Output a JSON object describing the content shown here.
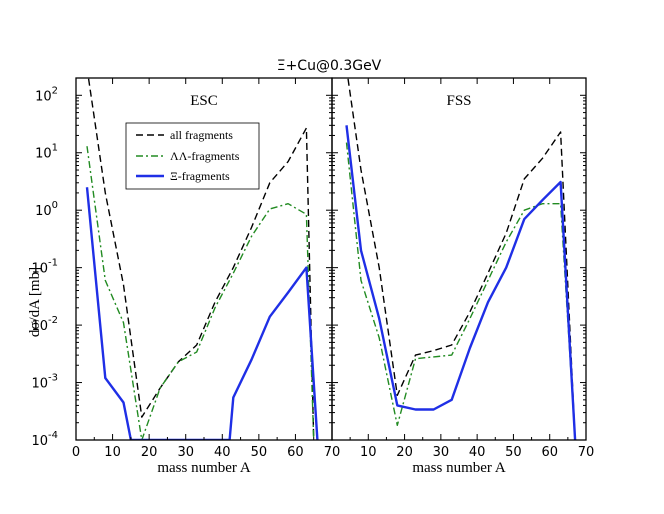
{
  "chart_data": {
    "type": "line",
    "title": "Ξ+Cu@0.3GeV",
    "ylabel": "dσ/dA [mb]",
    "yscale": "log",
    "ylim": [
      0.0001,
      200
    ],
    "y_ticks": [
      {
        "value": 0.0001,
        "base": "10",
        "exp": "-4"
      },
      {
        "value": 0.001,
        "base": "10",
        "exp": "-3"
      },
      {
        "value": 0.01,
        "base": "10",
        "exp": "-2"
      },
      {
        "value": 0.1,
        "base": "10",
        "exp": "-1"
      },
      {
        "value": 1,
        "base": "10",
        "exp": "0"
      },
      {
        "value": 10,
        "base": "10",
        "exp": "1"
      },
      {
        "value": 100,
        "base": "10",
        "exp": "2"
      }
    ],
    "legend": {
      "placement": "upper-left of left panel",
      "entries": [
        {
          "label": "all fragments",
          "color": "#000000",
          "dash": "dashed"
        },
        {
          "label": "ΛΛ-fragments",
          "color": "#228B22",
          "dash": "dash-dot"
        },
        {
          "label": "Ξ-fragments",
          "color": "#1f2fe6",
          "dash": "solid"
        }
      ]
    },
    "panels": [
      {
        "label": "ESC",
        "xlabel": "mass number A",
        "xlim": [
          0,
          70
        ],
        "x_ticks": [
          0,
          10,
          20,
          30,
          40,
          50,
          60,
          70
        ],
        "x_tick_labels": [
          "0",
          "10",
          "20",
          "30",
          "40",
          "50",
          "60",
          "70"
        ],
        "series": [
          {
            "name": "all fragments",
            "color": "#000000",
            "dash": "dashed",
            "x": [
              3,
              8,
              13,
              18,
              23,
              28,
              33,
              38,
              43,
              48,
              53,
              58,
              63,
              65
            ],
            "y": [
              300,
              2,
              0.05,
              0.00025,
              0.0008,
              0.0023,
              0.0045,
              0.025,
              0.1,
              0.5,
              3,
              7,
              27,
              0.0001
            ]
          },
          {
            "name": "ΛΛ-fragments",
            "color": "#228B22",
            "dash": "dash-dot",
            "x": [
              3,
              8,
              13,
              18,
              23,
              28,
              33,
              38,
              43,
              48,
              53,
              58,
              63,
              65
            ],
            "y": [
              13,
              0.06,
              0.011,
              0.0001,
              0.0008,
              0.0023,
              0.0034,
              0.02,
              0.08,
              0.35,
              1.05,
              1.3,
              0.85,
              0.0001
            ]
          },
          {
            "name": "Ξ-fragments",
            "color": "#1f2fe6",
            "dash": "solid",
            "x": [
              3,
              8,
              13,
              15,
              42,
              43,
              48,
              53,
              58,
              63,
              66
            ],
            "y": [
              2.5,
              0.0012,
              0.00045,
              0.0001,
              0.0001,
              0.00055,
              0.0025,
              0.014,
              0.037,
              0.1,
              0.0001
            ]
          }
        ]
      },
      {
        "label": "FSS",
        "xlabel": "mass number A",
        "xlim": [
          0,
          70
        ],
        "x_ticks": [
          0,
          10,
          20,
          30,
          40,
          50,
          60,
          70
        ],
        "x_tick_labels": [
          "",
          "10",
          "20",
          "30",
          "40",
          "50",
          "60",
          "70"
        ],
        "series": [
          {
            "name": "all fragments",
            "color": "#000000",
            "dash": "dashed",
            "x": [
              4,
              8,
              13,
              18,
              23,
              28,
              33,
              38,
              43,
              48,
              53,
              58,
              63,
              67
            ],
            "y": [
              300,
              5,
              0.1,
              0.0006,
              0.003,
              0.0036,
              0.0045,
              0.017,
              0.08,
              0.4,
              3.5,
              8,
              23,
              0.0001
            ]
          },
          {
            "name": "ΛΛ-fragments",
            "color": "#228B22",
            "dash": "dash-dot",
            "x": [
              4,
              8,
              13,
              18,
              23,
              28,
              33,
              38,
              43,
              48,
              53,
              58,
              63,
              67
            ],
            "y": [
              15,
              0.06,
              0.006,
              0.00018,
              0.0026,
              0.0028,
              0.003,
              0.013,
              0.06,
              0.28,
              1.0,
              1.3,
              1.3,
              0.0001
            ]
          },
          {
            "name": "Ξ-fragments",
            "color": "#1f2fe6",
            "dash": "solid",
            "x": [
              4,
              8,
              13,
              18,
              23,
              28,
              33,
              38,
              43,
              48,
              53,
              58,
              63,
              67
            ],
            "y": [
              30,
              0.2,
              0.013,
              0.0004,
              0.00034,
              0.00034,
              0.0005,
              0.004,
              0.025,
              0.1,
              0.7,
              1.5,
              3.1,
              0.0001
            ]
          }
        ]
      }
    ]
  }
}
